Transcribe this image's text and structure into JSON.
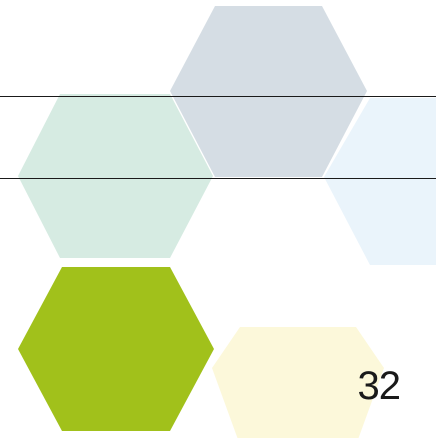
{
  "slide": {
    "page_number": "32"
  },
  "colors": {
    "hex_gray_blue": "#d5dde4",
    "hex_mint": "#d6ebe2",
    "hex_pale_blue": "#eaf4fb",
    "hex_lime": "#a1c11b",
    "hex_cream": "#fcf8da",
    "rule_line": "#1a1a1a"
  }
}
